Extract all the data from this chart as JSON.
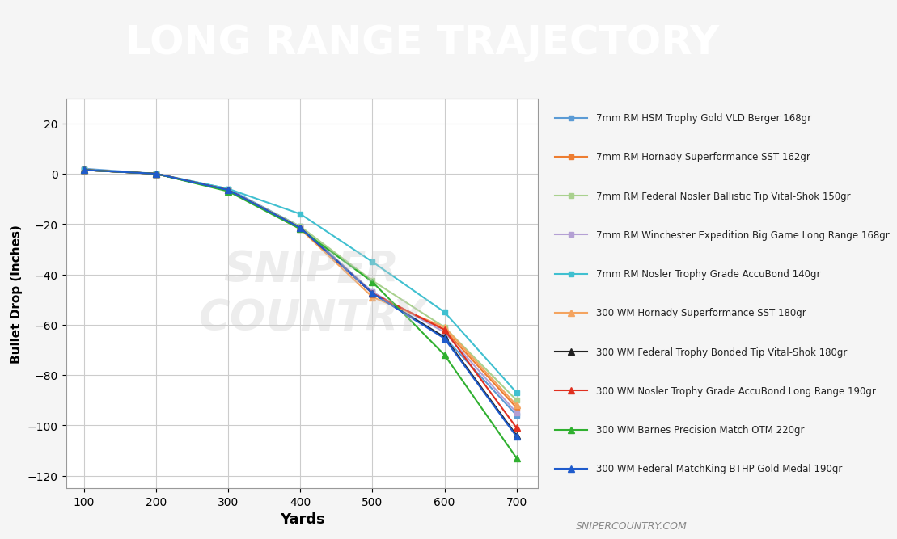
{
  "title": "LONG RANGE TRAJECTORY",
  "title_bg_color": "#555555",
  "title_text_color": "#ffffff",
  "accent_bar_color": "#e05555",
  "bg_color": "#f5f5f5",
  "plot_bg_color": "#ffffff",
  "xlabel": "Yards",
  "ylabel": "Bullet Drop (Inches)",
  "xlim": [
    75,
    730
  ],
  "ylim": [
    -125,
    30
  ],
  "yticks": [
    -120,
    -100,
    -80,
    -60,
    -40,
    -20,
    0,
    20
  ],
  "xticks": [
    100,
    200,
    300,
    400,
    500,
    600,
    700
  ],
  "watermark": "SNIPER\nCOUNTRY",
  "credit": "SNIPERCOUNTRY.COM",
  "series": [
    {
      "label": "7mm RM HSM Trophy Gold VLD Berger 168gr",
      "color": "#5b9bd5",
      "marker": "s",
      "marker_size": 5,
      "linestyle": "-",
      "linewidth": 1.5,
      "values": [
        2.0,
        0.0,
        -6.0,
        -21.0,
        -47.0,
        -65.0,
        -96.0
      ]
    },
    {
      "label": "7mm RM Hornady Superformance SST 162gr",
      "color": "#ed7d31",
      "marker": "s",
      "marker_size": 5,
      "linestyle": "-",
      "linewidth": 1.5,
      "values": [
        1.5,
        0.0,
        -6.5,
        -21.5,
        -47.5,
        -62.0,
        -93.0
      ]
    },
    {
      "label": "7mm RM Federal Nosler Ballistic Tip Vital-Shok 150gr",
      "color": "#a9d18e",
      "marker": "s",
      "marker_size": 5,
      "linestyle": "-",
      "linewidth": 1.5,
      "values": [
        1.5,
        0.0,
        -6.5,
        -21.0,
        -42.5,
        -61.0,
        -90.0
      ]
    },
    {
      "label": "7mm RM Winchester Expedition Big Game Long Range 168gr",
      "color": "#b4a0d4",
      "marker": "s",
      "marker_size": 5,
      "linestyle": "-",
      "linewidth": 1.5,
      "values": [
        1.5,
        0.0,
        -6.5,
        -21.5,
        -47.0,
        -63.0,
        -95.0
      ]
    },
    {
      "label": "7mm RM Nosler Trophy Grade AccuBond 140gr",
      "color": "#40c0d0",
      "marker": "s",
      "marker_size": 5,
      "linestyle": "-",
      "linewidth": 1.5,
      "values": [
        1.5,
        0.0,
        -6.0,
        -16.0,
        -35.0,
        -55.0,
        -87.0
      ]
    },
    {
      "label": "300 WM Hornady Superformance SST 180gr",
      "color": "#f4a460",
      "marker": "^",
      "marker_size": 6,
      "linestyle": "-",
      "linewidth": 1.5,
      "values": [
        1.5,
        0.0,
        -6.5,
        -22.0,
        -49.0,
        -61.0,
        -92.0
      ]
    },
    {
      "label": "300 WM Federal Trophy Bonded Tip Vital-Shok 180gr",
      "color": "#222222",
      "marker": "^",
      "marker_size": 6,
      "linestyle": "-",
      "linewidth": 1.5,
      "values": [
        1.5,
        0.0,
        -6.5,
        -21.5,
        -47.5,
        -65.0,
        -104.0
      ]
    },
    {
      "label": "300 WM Nosler Trophy Grade AccuBond Long Range 190gr",
      "color": "#e03020",
      "marker": "^",
      "marker_size": 6,
      "linestyle": "-",
      "linewidth": 1.5,
      "values": [
        1.5,
        0.0,
        -6.5,
        -21.5,
        -47.5,
        -62.0,
        -101.0
      ]
    },
    {
      "label": "300 WM Barnes Precision Match OTM 220gr",
      "color": "#30b030",
      "marker": "^",
      "marker_size": 6,
      "linestyle": "-",
      "linewidth": 1.5,
      "values": [
        1.5,
        0.0,
        -7.0,
        -22.0,
        -43.0,
        -72.0,
        -113.0
      ]
    },
    {
      "label": "300 WM Federal MatchKing BTHP Gold Medal 190gr",
      "color": "#1f5bcc",
      "marker": "^",
      "marker_size": 6,
      "linestyle": "-",
      "linewidth": 1.5,
      "values": [
        1.5,
        0.0,
        -6.5,
        -21.5,
        -47.5,
        -65.5,
        -104.5
      ]
    }
  ]
}
